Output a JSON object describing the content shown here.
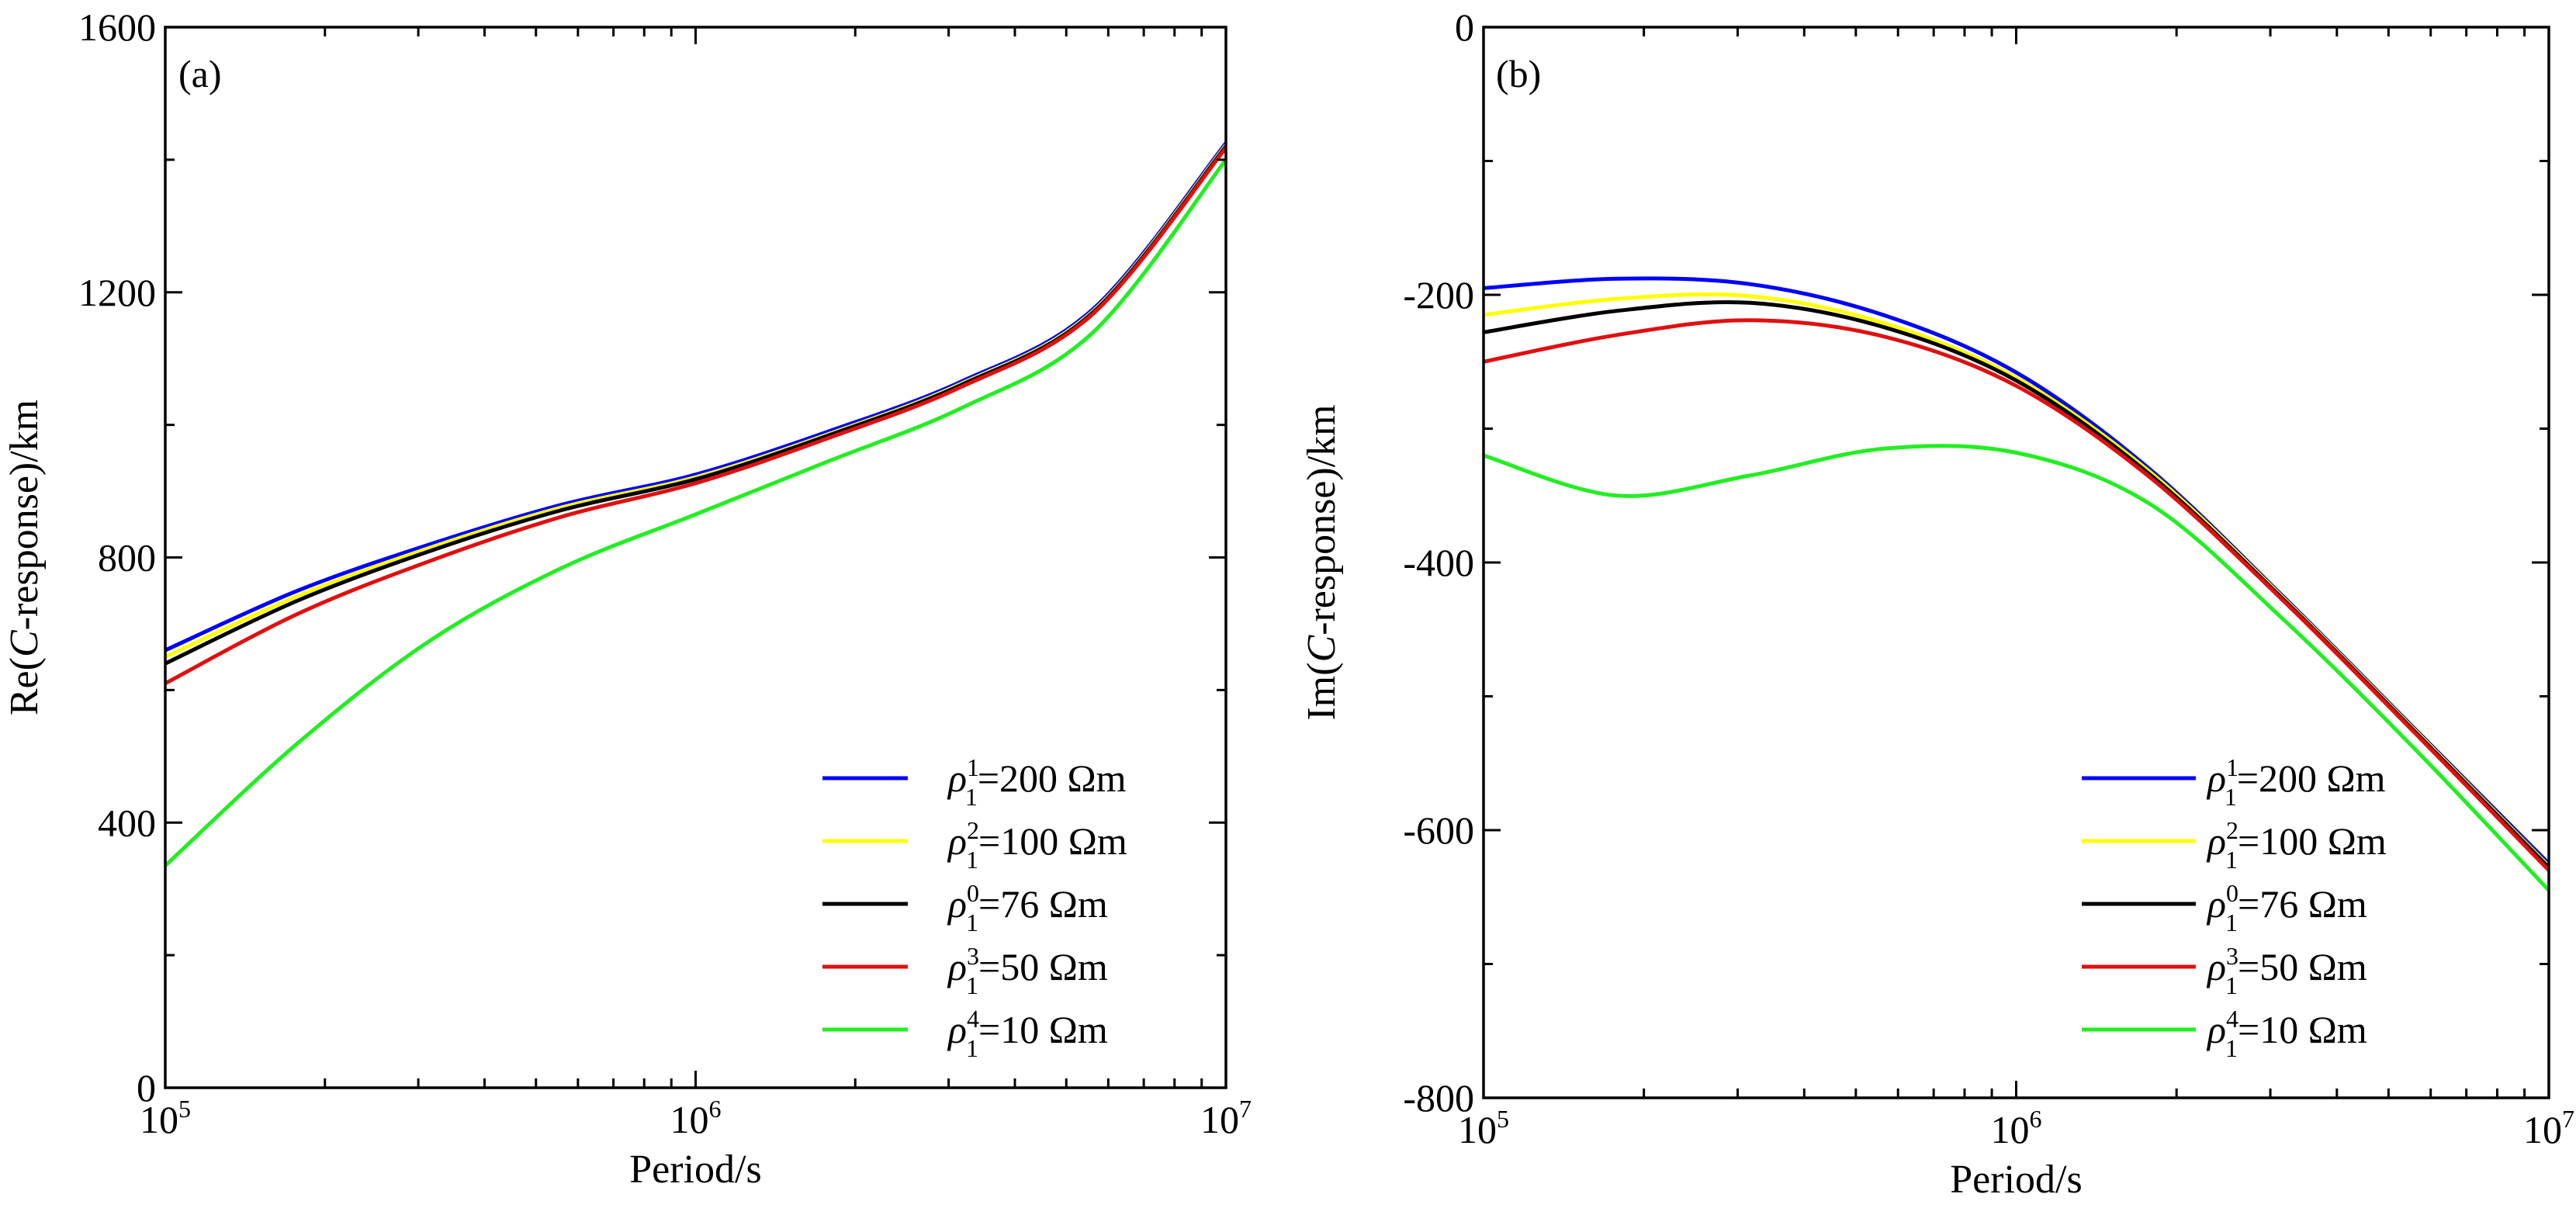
{
  "chart_data": [
    {
      "type": "line",
      "panel_label": "(a)",
      "title": "",
      "xlabel": "Period/s",
      "ylabel_parts": [
        "Re(",
        "C",
        "-response)/km"
      ],
      "xscale": "log",
      "xlim": [
        100000,
        10000000
      ],
      "ylim": [
        0,
        1600
      ],
      "xticks": [
        {
          "value": 100000,
          "base": "10",
          "exp": "5"
        },
        {
          "value": 1000000,
          "base": "10",
          "exp": "6"
        },
        {
          "value": 10000000,
          "base": "10",
          "exp": "7"
        }
      ],
      "yticks": [
        {
          "value": 0,
          "label": "0"
        },
        {
          "value": 400,
          "label": "400"
        },
        {
          "value": 800,
          "label": "800"
        },
        {
          "value": 1200,
          "label": "1200"
        },
        {
          "value": 1600,
          "label": "1600"
        }
      ],
      "legend_position": "bottom-right",
      "x_log10": [
        5.0,
        5.25,
        5.5,
        5.75,
        6.0,
        6.25,
        6.5,
        6.75,
        7.0
      ],
      "series": [
        {
          "name": "ρ1^1=200 Ωm",
          "sym": "ρ",
          "sub": "1",
          "sup": "1",
          "rest": "=200 Ωm",
          "color": "#0000ff",
          "values": [
            660,
            750,
            820,
            880,
            925,
            990,
            1065,
            1175,
            1425
          ]
        },
        {
          "name": "ρ1^2=100 Ωm",
          "sym": "ρ",
          "sub": "1",
          "sup": "2",
          "rest": "=100 Ωm",
          "color": "#ffff00",
          "values": [
            650,
            742,
            815,
            876,
            921,
            986,
            1062,
            1172,
            1422
          ]
        },
        {
          "name": "ρ1^0=76 Ωm",
          "sym": "ρ",
          "sub": "1",
          "sup": "0",
          "rest": "=76 Ωm",
          "color": "#000000",
          "values": [
            640,
            735,
            810,
            872,
            918,
            984,
            1060,
            1170,
            1420
          ]
        },
        {
          "name": "ρ1^3=50 Ωm",
          "sym": "ρ",
          "sub": "1",
          "sup": "3",
          "rest": "=50 Ωm",
          "color": "#e01010",
          "values": [
            610,
            715,
            795,
            862,
            912,
            980,
            1057,
            1168,
            1418
          ]
        },
        {
          "name": "ρ1^4=10 Ωm",
          "sym": "ρ",
          "sub": "1",
          "sup": "4",
          "rest": "=10 Ωm",
          "color": "#22ee22",
          "values": [
            335,
            520,
            675,
            785,
            865,
            945,
            1025,
            1140,
            1400
          ]
        }
      ]
    },
    {
      "type": "line",
      "panel_label": "(b)",
      "title": "",
      "xlabel": "Period/s",
      "ylabel_parts": [
        "Im(",
        "C",
        "-response)/km"
      ],
      "xscale": "log",
      "xlim": [
        100000,
        10000000
      ],
      "ylim": [
        -800,
        0
      ],
      "xticks": [
        {
          "value": 100000,
          "base": "10",
          "exp": "5"
        },
        {
          "value": 1000000,
          "base": "10",
          "exp": "6"
        },
        {
          "value": 10000000,
          "base": "10",
          "exp": "7"
        }
      ],
      "yticks": [
        {
          "value": -800,
          "label": "-800"
        },
        {
          "value": -600,
          "label": "-600"
        },
        {
          "value": -400,
          "label": "-400"
        },
        {
          "value": -200,
          "label": "-200"
        },
        {
          "value": 0,
          "label": "0"
        }
      ],
      "legend_position": "bottom-right",
      "x_log10": [
        5.0,
        5.25,
        5.5,
        5.75,
        6.0,
        6.25,
        6.5,
        6.75,
        7.0
      ],
      "series": [
        {
          "name": "ρ1^1=200 Ωm",
          "sym": "ρ",
          "sub": "1",
          "sup": "1",
          "rest": "=200 Ωm",
          "color": "#0000ff",
          "values": [
            -195,
            -188,
            -192,
            -215,
            -258,
            -330,
            -425,
            -525,
            -625
          ]
        },
        {
          "name": "ρ1^2=100 Ωm",
          "sym": "ρ",
          "sub": "1",
          "sup": "2",
          "rest": "=100 Ωm",
          "color": "#ffff00",
          "values": [
            -215,
            -203,
            -201,
            -221,
            -262,
            -332,
            -426,
            -526,
            -627
          ]
        },
        {
          "name": "ρ1^0=76 Ωm",
          "sym": "ρ",
          "sub": "1",
          "sup": "0",
          "rest": "=76 Ωm",
          "color": "#000000",
          "values": [
            -228,
            -212,
            -206,
            -224,
            -264,
            -334,
            -427,
            -527,
            -628
          ]
        },
        {
          "name": "ρ1^3=50 Ωm",
          "sym": "ρ",
          "sub": "1",
          "sup": "3",
          "rest": "=50 Ωm",
          "color": "#e01010",
          "values": [
            -250,
            -230,
            -219,
            -231,
            -268,
            -336,
            -428,
            -528,
            -630
          ]
        },
        {
          "name": "ρ1^4=10 Ωm",
          "sym": "ρ",
          "sub": "1",
          "sup": "4",
          "rest": "=10 Ωm",
          "color": "#22ee22",
          "values": [
            -320,
            -350,
            -335,
            -315,
            -318,
            -356,
            -442,
            -540,
            -645
          ]
        }
      ]
    }
  ]
}
